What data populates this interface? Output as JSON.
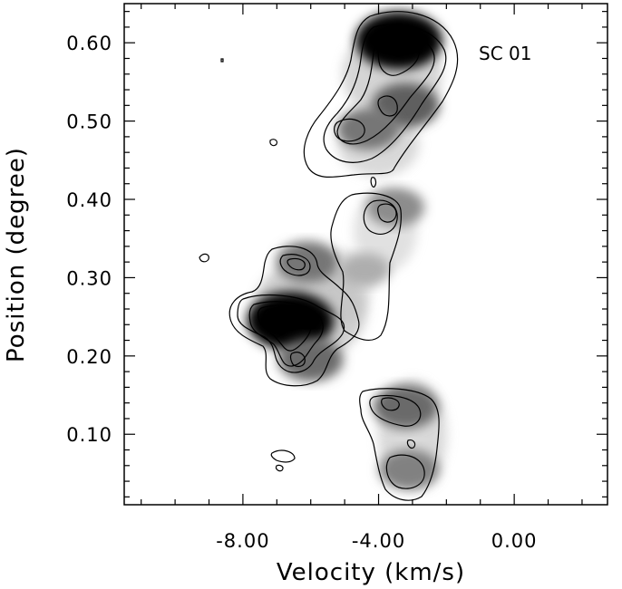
{
  "chart_data": {
    "type": "heatmap",
    "subtype": "position-velocity diagram with contours",
    "title": "",
    "annotation": "SC 01",
    "xlabel": "Velocity (km/s)",
    "ylabel": "Position (degree)",
    "xlim": [
      -11.5,
      2.75
    ],
    "ylim": [
      0.01,
      0.65
    ],
    "xticks": [
      -8.0,
      -4.0,
      0.0
    ],
    "xtick_labels": [
      "-8.00",
      "-4.00",
      "0.00"
    ],
    "xminor_step": 1.0,
    "yticks": [
      0.1,
      0.2,
      0.3,
      0.4,
      0.5,
      0.6
    ],
    "ytick_labels": [
      "0.10",
      "0.20",
      "0.30",
      "0.40",
      "0.50",
      "0.60"
    ],
    "yminor_step": 0.02,
    "colormap": "grayscale (white = low, black = high)",
    "grid": false,
    "emission_peaks": [
      {
        "velocity": -3.4,
        "position": 0.603,
        "relative_intensity": 1.0
      },
      {
        "velocity": -3.2,
        "position": 0.52,
        "relative_intensity": 0.6
      },
      {
        "velocity": -4.3,
        "position": 0.49,
        "relative_intensity": 0.5
      },
      {
        "velocity": -3.5,
        "position": 0.39,
        "relative_intensity": 0.4
      },
      {
        "velocity": -6.1,
        "position": 0.32,
        "relative_intensity": 0.5
      },
      {
        "velocity": -6.6,
        "position": 0.245,
        "relative_intensity": 1.0
      },
      {
        "velocity": -6.0,
        "position": 0.195,
        "relative_intensity": 0.55
      },
      {
        "velocity": -4.4,
        "position": 0.31,
        "relative_intensity": 0.25
      },
      {
        "velocity": -3.2,
        "position": 0.135,
        "relative_intensity": 0.55
      },
      {
        "velocity": -3.1,
        "position": 0.055,
        "relative_intensity": 0.45
      }
    ]
  }
}
